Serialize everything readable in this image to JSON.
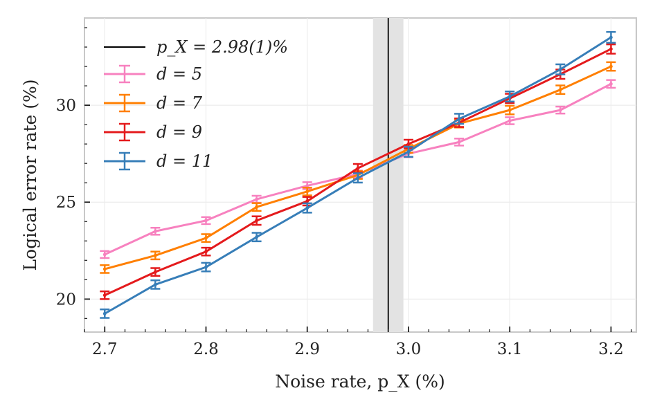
{
  "chart_data": {
    "type": "line",
    "title": "",
    "xlabel": "Noise rate, p_X (%)",
    "ylabel": "Logical error rate (%)",
    "xlim": [
      2.68,
      3.225
    ],
    "ylim": [
      18.3,
      34.5
    ],
    "x": [
      2.7,
      2.75,
      2.8,
      2.85,
      2.9,
      2.95,
      3.0,
      3.05,
      3.1,
      3.15,
      3.2
    ],
    "xticks": [
      2.7,
      2.8,
      2.9,
      3.0,
      3.1,
      3.2
    ],
    "xtick_labels": [
      "2.7",
      "2.8",
      "2.9",
      "3.0",
      "3.1",
      "3.2"
    ],
    "yticks": [
      20,
      25,
      30
    ],
    "ytick_labels": [
      "20",
      "25",
      "30"
    ],
    "grid": true,
    "legend_position": "top-left",
    "threshold": {
      "label": "p_X = 2.98(1)%",
      "value": 2.98,
      "band": [
        2.965,
        2.995
      ],
      "color": "#000000",
      "band_color": "#e3e3e3"
    },
    "series": [
      {
        "name": "d = 5",
        "color": "#f781bf",
        "values": [
          22.3,
          23.5,
          24.05,
          25.15,
          25.85,
          26.45,
          27.5,
          28.1,
          29.2,
          29.75,
          31.1
        ],
        "errors": [
          0.18,
          0.18,
          0.18,
          0.18,
          0.18,
          0.18,
          0.18,
          0.18,
          0.18,
          0.18,
          0.2
        ]
      },
      {
        "name": "d = 7",
        "color": "#ff7f00",
        "values": [
          21.55,
          22.25,
          23.15,
          24.75,
          25.55,
          26.4,
          27.75,
          29.05,
          29.75,
          30.8,
          32.0
        ],
        "errors": [
          0.2,
          0.2,
          0.2,
          0.2,
          0.2,
          0.2,
          0.2,
          0.2,
          0.22,
          0.22,
          0.22
        ]
      },
      {
        "name": "d = 9",
        "color": "#e41a1c",
        "values": [
          20.2,
          21.4,
          22.45,
          24.05,
          25.05,
          26.75,
          28.0,
          29.1,
          30.35,
          31.6,
          32.9
        ],
        "errors": [
          0.2,
          0.2,
          0.2,
          0.22,
          0.22,
          0.22,
          0.22,
          0.22,
          0.24,
          0.24,
          0.24
        ]
      },
      {
        "name": "d = 11",
        "color": "#377eb8",
        "values": [
          19.25,
          20.75,
          21.65,
          23.2,
          24.7,
          26.25,
          27.6,
          29.3,
          30.45,
          31.85,
          33.5
        ],
        "errors": [
          0.22,
          0.22,
          0.22,
          0.22,
          0.24,
          0.24,
          0.26,
          0.26,
          0.26,
          0.26,
          0.28
        ]
      }
    ]
  }
}
